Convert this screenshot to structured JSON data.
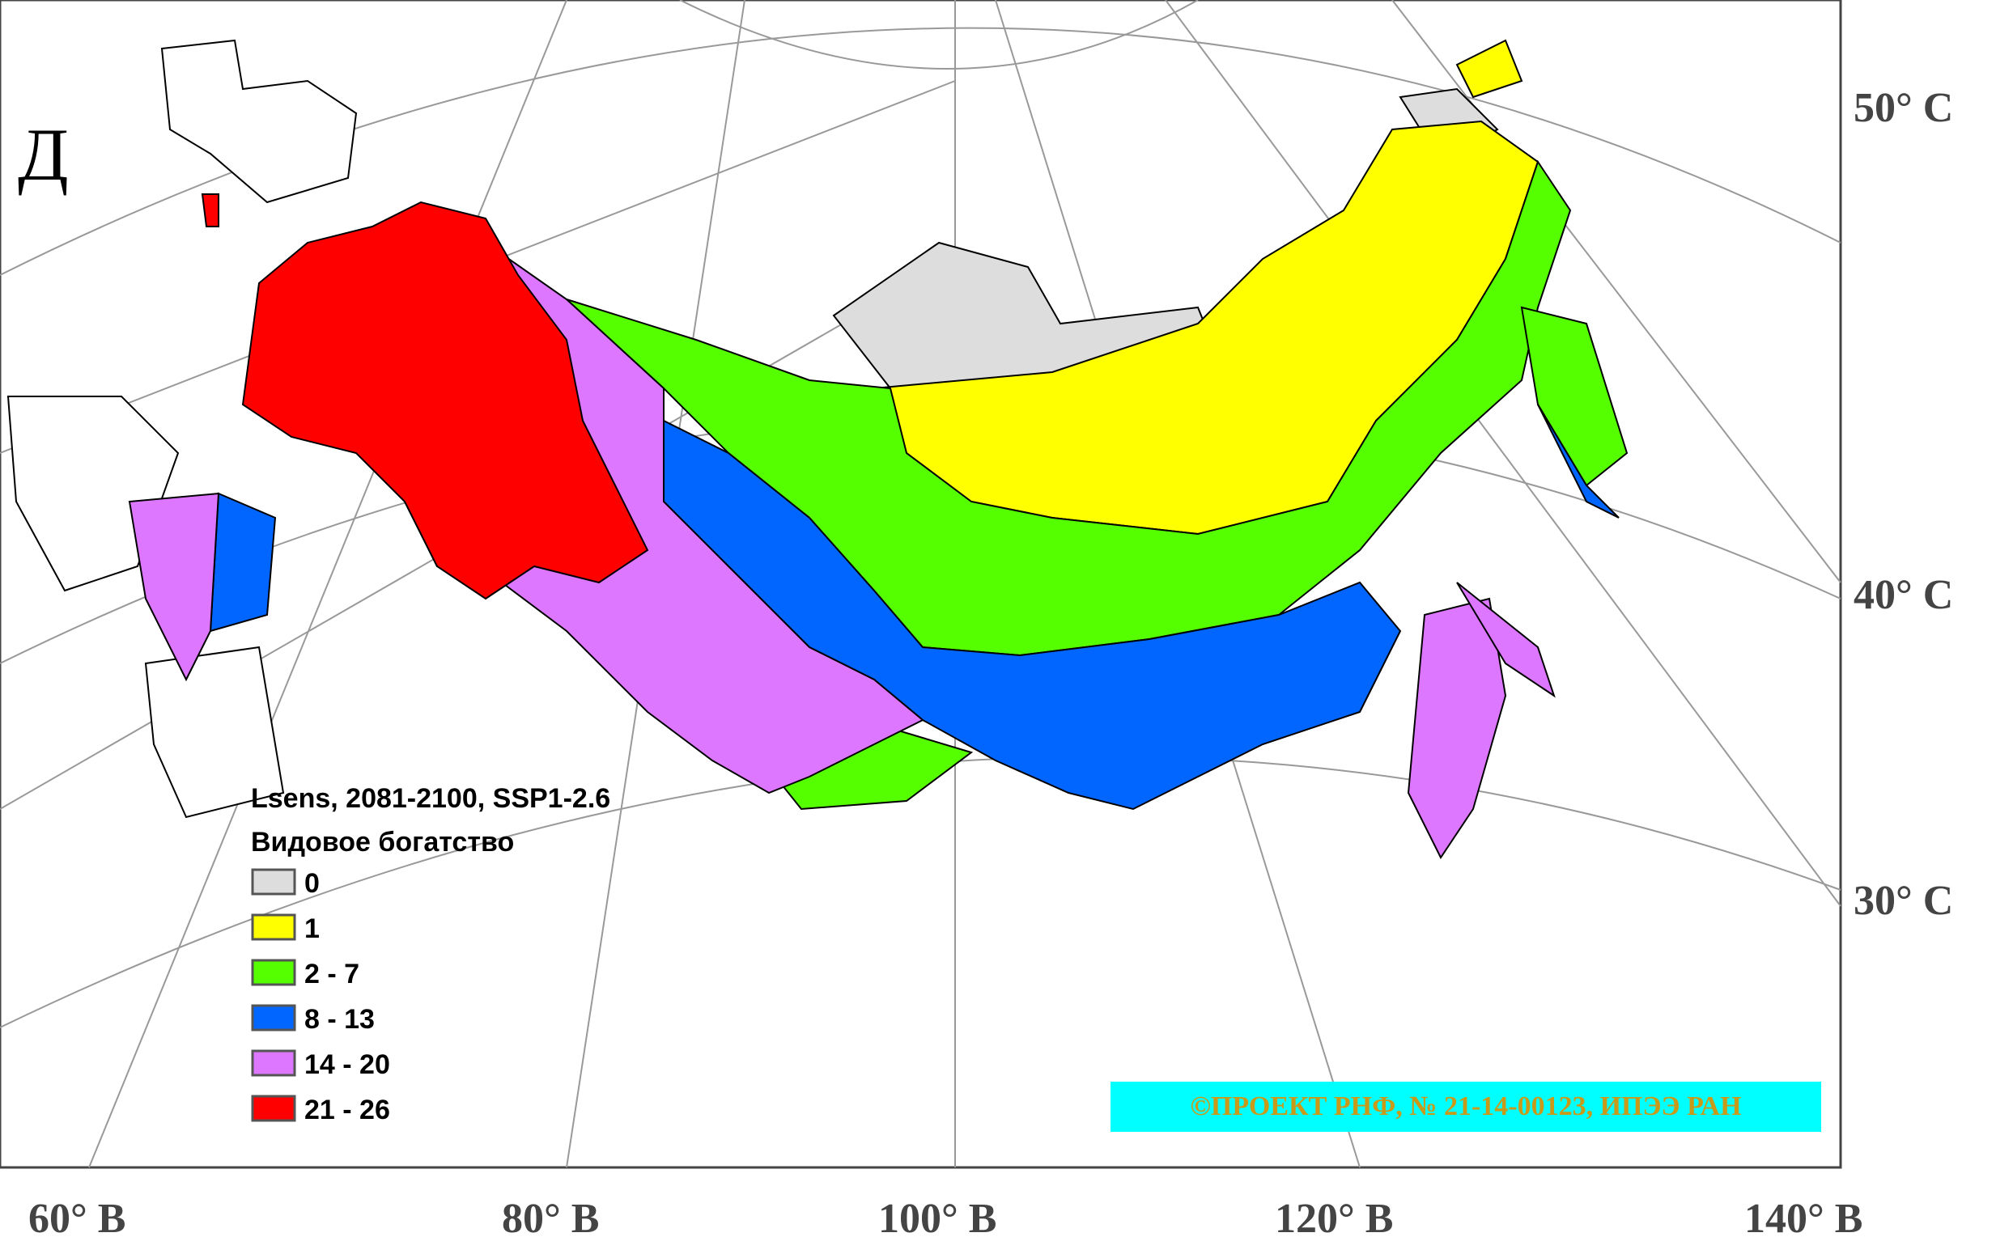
{
  "panel_letter": "Д",
  "legend": {
    "title": "Lsens, 2081-2100, SSP1-2.6",
    "subtitle": "Видовое богатство",
    "items": [
      {
        "label": "0",
        "color": "#dddddd"
      },
      {
        "label": "1",
        "color": "#ffff00"
      },
      {
        "label": "2 - 7",
        "color": "#55ff00"
      },
      {
        "label": "8 - 13",
        "color": "#0066ff"
      },
      {
        "label": "14 - 20",
        "color": "#dd77ff"
      },
      {
        "label": "21 - 26",
        "color": "#ff0000"
      }
    ]
  },
  "lat_labels": [
    "50° С",
    "40° С",
    "30° С"
  ],
  "lon_labels": [
    "60° В",
    "80° В",
    "100° В",
    "120° В",
    "140° В"
  ],
  "copyright": "©ПРОЕКТ РНФ, № 21-14-00123, ИПЭЭ РАН"
}
